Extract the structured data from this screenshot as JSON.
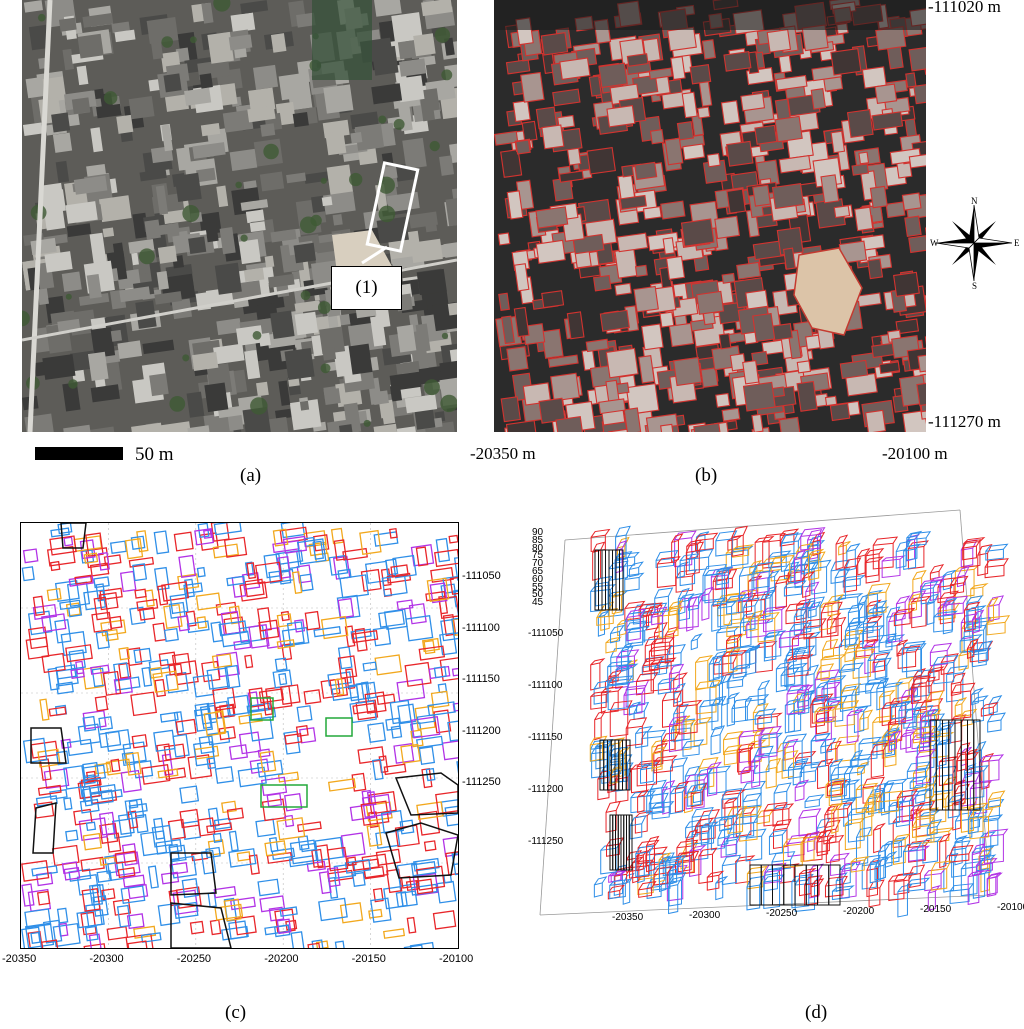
{
  "panel_a": {
    "label": "(a)",
    "callout_label": "(1)",
    "scale_bar_label": "50 m"
  },
  "panel_b": {
    "label": "(b)",
    "coord_top_right": "-111020  m",
    "coord_bottom_right": "-111270 m",
    "coord_bottom_left": "-20350  m",
    "coord_bottom_right_x": "-20100 m",
    "compass": {
      "n": "N",
      "s": "S",
      "e": "E",
      "w": "W"
    }
  },
  "panel_c": {
    "label": "(c)",
    "chart_data": {
      "type": "map",
      "xlim": [
        -20350,
        -20100
      ],
      "ylim": [
        -111270,
        -111020
      ],
      "x_ticks": [
        "-20350",
        "-20300",
        "-20250",
        "-20200",
        "-20150",
        "-20100"
      ],
      "y_ticks": [
        "-111050",
        "-111100",
        "-111150",
        "-111200",
        "-111250"
      ],
      "grid": true
    }
  },
  "panel_d": {
    "label": "(d)",
    "chart_data": {
      "type": "3d-wireframe",
      "x_ticks": [
        "-20350",
        "-20300",
        "-20250",
        "-20200",
        "-20150",
        "-20100"
      ],
      "y_ticks": [
        "-111050",
        "-111100",
        "-111150",
        "-111200",
        "-111250"
      ],
      "z_ticks": [
        "90",
        "85",
        "80",
        "75",
        "70",
        "65",
        "60",
        "55",
        "50",
        "45"
      ]
    }
  },
  "colors": {
    "building_blue": "#2f8fe8",
    "building_red": "#e8262a",
    "building_purple": "#b233e6",
    "building_orange": "#f2a81d",
    "building_green": "#22a83a",
    "building_black": "#111111"
  }
}
